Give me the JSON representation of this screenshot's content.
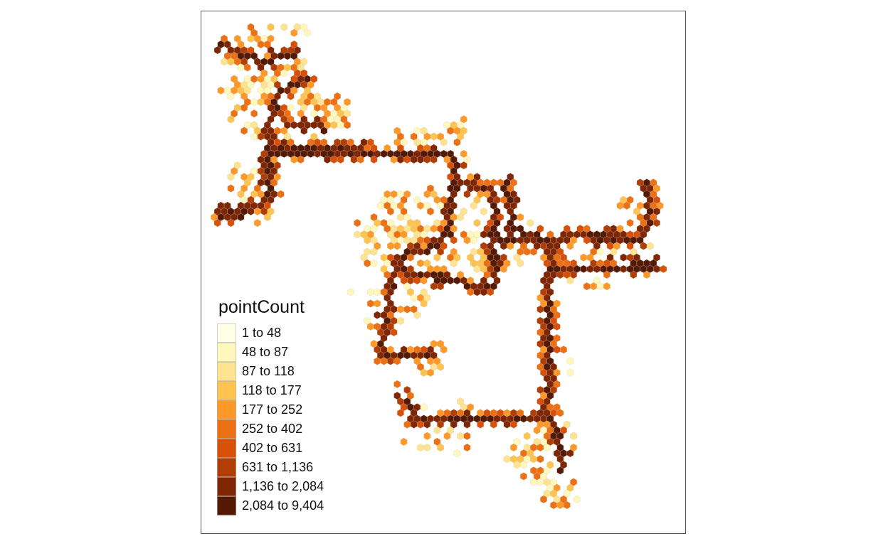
{
  "legend": {
    "title": "pointCount",
    "items": [
      {
        "label": "1 to 48",
        "color": "#ffffe5"
      },
      {
        "label": "48 to 87",
        "color": "#fff7bc"
      },
      {
        "label": "87 to 118",
        "color": "#fee391"
      },
      {
        "label": "118 to 177",
        "color": "#fec44f"
      },
      {
        "label": "177 to 252",
        "color": "#fe9929"
      },
      {
        "label": "252 to 402",
        "color": "#ec7014"
      },
      {
        "label": "402 to 631",
        "color": "#d95109"
      },
      {
        "label": "631 to 1,136",
        "color": "#b13e04"
      },
      {
        "label": "1,136 to 2,084",
        "color": "#7f2704"
      },
      {
        "label": "2,084 to 9,404",
        "color": "#551a06"
      }
    ]
  }
}
